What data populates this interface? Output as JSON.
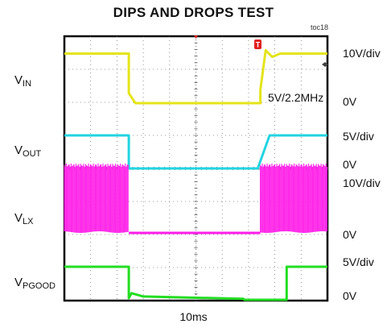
{
  "chart_data": {
    "type": "line",
    "title": "DIPS AND DROPS TEST",
    "tag": "toc18",
    "xlabel": "10ms",
    "xlim": [
      0,
      100
    ],
    "annotation": "5V/2.2MHz",
    "grid": true,
    "channels": [
      {
        "name": "VIN",
        "label_main": "V",
        "label_sub": "IN",
        "scale": "10V/div",
        "zero_label": "0V",
        "color": "#e4e41a",
        "kind": "step",
        "points": [
          [
            0,
            1.5
          ],
          [
            24.5,
            1.5
          ],
          [
            24.5,
            0.3
          ],
          [
            27,
            0
          ],
          [
            74.5,
            0
          ],
          [
            74.5,
            0.4
          ],
          [
            76.5,
            1.6
          ],
          [
            79,
            1.4
          ],
          [
            82,
            1.5
          ],
          [
            100,
            1.5
          ]
        ]
      },
      {
        "name": "VOUT",
        "label_main": "V",
        "label_sub": "OUT",
        "scale": "5V/div",
        "zero_label": "0V",
        "color": "#22d4e0",
        "kind": "step",
        "points": [
          [
            0,
            1.0
          ],
          [
            24.5,
            1.0
          ],
          [
            24.5,
            0
          ],
          [
            73.5,
            0
          ],
          [
            78,
            1.0
          ],
          [
            100,
            1.0
          ]
        ]
      },
      {
        "name": "VLX",
        "label_main": "V",
        "label_sub": "LX",
        "scale": "10V/div",
        "zero_label": "0V",
        "color": "#ff1ee8",
        "kind": "burst",
        "bursts": [
          [
            0,
            24.5
          ],
          [
            74.5,
            100
          ]
        ],
        "high": 2.1,
        "low": 0
      },
      {
        "name": "VPGOOD",
        "label_main": "V",
        "label_sub": "PGOOD",
        "scale": "5V/div",
        "zero_label": "0V",
        "color": "#22dd22",
        "kind": "step",
        "points": [
          [
            0,
            1.0
          ],
          [
            24.5,
            1.0
          ],
          [
            24.5,
            0.05
          ],
          [
            25.5,
            0.2
          ],
          [
            30,
            0.1
          ],
          [
            68,
            0.03
          ],
          [
            68.5,
            0
          ],
          [
            84.5,
            0
          ],
          [
            84.5,
            1.0
          ],
          [
            100,
            1.0
          ]
        ]
      }
    ]
  }
}
